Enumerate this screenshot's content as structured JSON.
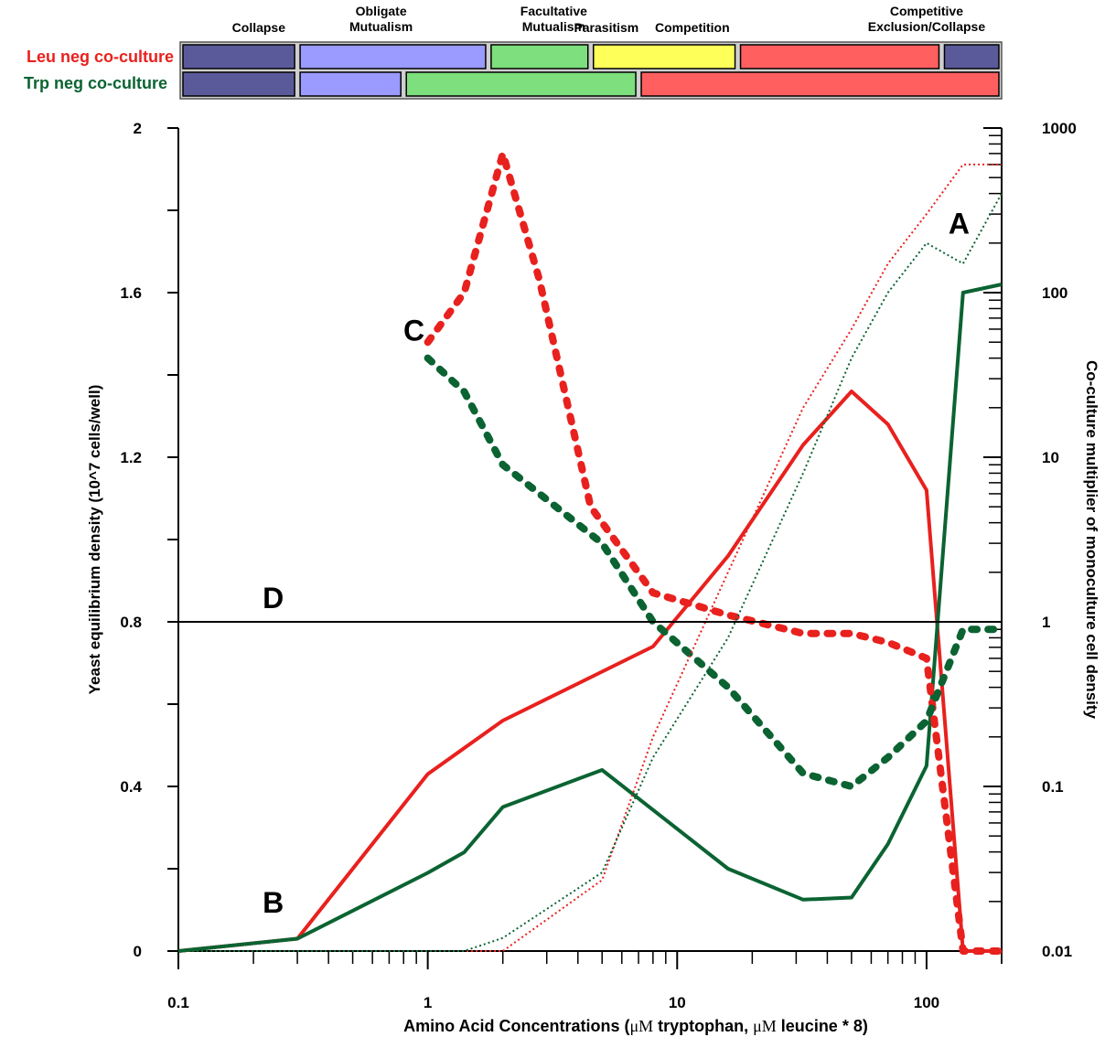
{
  "chart_data": {
    "type": "line",
    "title": "",
    "xlabel": {
      "pre": "Amino Acid Concentrations (",
      "mu1": "μM",
      "mid": " tryptophan, ",
      "mu2": "μM",
      "post": " leucine * 8)"
    },
    "ylabel_left": "Yeast equilibrium density (10^7 cells/well)",
    "ylabel_right": "Co-culture multiplier of monoculture cell density",
    "x_scale": "log",
    "xlim": [
      0.1,
      200
    ],
    "ylim_left": [
      0,
      2
    ],
    "ylim_right": [
      0.01,
      1000
    ],
    "y_right_scale": "log",
    "x_ticks": [
      "0.1",
      "1",
      "10",
      "100"
    ],
    "y_left_ticks": [
      "0",
      "0.4",
      "0.8",
      "1.2",
      "1.6",
      "2"
    ],
    "y_right_ticks": [
      "0.01",
      "0.1",
      "1",
      "10",
      "100",
      "1000"
    ],
    "colors": {
      "leu": "#e8211e",
      "trp": "#0b6332",
      "ref": "#000000"
    },
    "series": [
      {
        "axis": "left",
        "style": "solid",
        "color": "leu",
        "points": [
          [
            0.1,
            0
          ],
          [
            0.3,
            0.03
          ],
          [
            1,
            0.43
          ],
          [
            2,
            0.56
          ],
          [
            8,
            0.74
          ],
          [
            16,
            0.96
          ],
          [
            32,
            1.23
          ],
          [
            50,
            1.36
          ],
          [
            70,
            1.28
          ],
          [
            100,
            1.12
          ],
          [
            140,
            0
          ],
          [
            200,
            0
          ]
        ]
      },
      {
        "axis": "left",
        "style": "solid",
        "color": "trp",
        "points": [
          [
            0.1,
            0
          ],
          [
            0.3,
            0.03
          ],
          [
            1,
            0.19
          ],
          [
            1.4,
            0.24
          ],
          [
            2,
            0.35
          ],
          [
            5,
            0.44
          ],
          [
            16,
            0.2
          ],
          [
            32,
            0.125
          ],
          [
            50,
            0.13
          ],
          [
            70,
            0.26
          ],
          [
            100,
            0.45
          ],
          [
            140,
            1.6
          ],
          [
            200,
            1.62
          ]
        ]
      },
      {
        "axis": "right",
        "style": "dashed",
        "color": "leu",
        "points": [
          [
            1,
            50
          ],
          [
            1.4,
            100
          ],
          [
            2,
            700
          ],
          [
            2.8,
            120
          ],
          [
            4.5,
            5
          ],
          [
            8,
            1.5
          ],
          [
            16,
            1.1
          ],
          [
            32,
            0.85
          ],
          [
            50,
            0.85
          ],
          [
            70,
            0.75
          ],
          [
            100,
            0.6
          ],
          [
            140,
            0.01
          ],
          [
            200,
            0.01
          ]
        ]
      },
      {
        "axis": "right",
        "style": "dashed",
        "color": "trp",
        "points": [
          [
            1,
            40
          ],
          [
            1.4,
            25
          ],
          [
            2,
            9
          ],
          [
            5,
            3
          ],
          [
            8,
            1
          ],
          [
            16,
            0.4
          ],
          [
            32,
            0.12
          ],
          [
            50,
            0.1
          ],
          [
            70,
            0.15
          ],
          [
            100,
            0.25
          ],
          [
            140,
            0.9
          ],
          [
            200,
            0.9
          ]
        ]
      },
      {
        "axis": "right",
        "style": "dotted",
        "color": "leu",
        "points": [
          [
            0.1,
            0.01
          ],
          [
            1,
            0.01
          ],
          [
            2,
            0.01
          ],
          [
            5,
            0.027
          ],
          [
            8,
            0.2
          ],
          [
            16,
            2
          ],
          [
            32,
            20
          ],
          [
            50,
            60
          ],
          [
            70,
            150
          ],
          [
            100,
            300
          ],
          [
            140,
            600
          ],
          [
            200,
            600
          ]
        ]
      },
      {
        "axis": "right",
        "style": "dotted",
        "color": "trp",
        "points": [
          [
            0.1,
            0.01
          ],
          [
            1.4,
            0.01
          ],
          [
            2,
            0.012
          ],
          [
            5,
            0.03
          ],
          [
            8,
            0.15
          ],
          [
            16,
            0.8
          ],
          [
            32,
            8
          ],
          [
            50,
            40
          ],
          [
            70,
            100
          ],
          [
            100,
            200
          ],
          [
            140,
            150
          ],
          [
            200,
            400
          ]
        ]
      },
      {
        "axis": "left",
        "style": "solid",
        "color": "ref",
        "points": [
          [
            0.1,
            0.8
          ],
          [
            200,
            0.8
          ]
        ]
      }
    ],
    "annotations": [
      {
        "text": "A",
        "x": 135,
        "y": 1.77,
        "axis": "left"
      },
      {
        "text": "B",
        "x": 0.24,
        "y": 0.12,
        "axis": "left"
      },
      {
        "text": "C",
        "x": 0.88,
        "y": 1.51,
        "axis": "left"
      },
      {
        "text": "D",
        "x": 0.24,
        "y": 0.86,
        "axis": "left"
      }
    ]
  },
  "legend": {
    "leu_label": "Leu neg co-culture",
    "trp_label": "Trp neg co-culture"
  },
  "interaction_bar": {
    "headers": [
      {
        "lines": [
          "Collapse"
        ],
        "x_center": 0.21
      },
      {
        "lines": [
          "Obligate",
          "Mutualism"
        ],
        "x_center": 0.65
      },
      {
        "lines": [
          "Facultative",
          "Mutualism"
        ],
        "x_center": 3.2
      },
      {
        "lines": [
          "Parasitism"
        ],
        "x_center": 5.2
      },
      {
        "lines": [
          "Competition"
        ],
        "x_center": 11.5
      },
      {
        "lines": [
          "Competitive",
          "Exclusion/Collapse"
        ],
        "x_center": 100
      }
    ],
    "leu_row": [
      {
        "state": "collapse",
        "from": 0.1,
        "to": 0.3
      },
      {
        "state": "obligate",
        "from": 0.3,
        "to": 1.75
      },
      {
        "state": "facultative",
        "from": 1.75,
        "to": 4.5
      },
      {
        "state": "parasitism",
        "from": 4.5,
        "to": 17.5
      },
      {
        "state": "competition",
        "from": 17.5,
        "to": 115
      },
      {
        "state": "exclusion",
        "from": 115,
        "to": 200
      }
    ],
    "trp_row": [
      {
        "state": "collapse",
        "from": 0.1,
        "to": 0.3
      },
      {
        "state": "obligate",
        "from": 0.3,
        "to": 0.8
      },
      {
        "state": "facultative",
        "from": 0.8,
        "to": 7
      },
      {
        "state": "competition",
        "from": 7,
        "to": 200
      }
    ],
    "state_colors": {
      "collapse": "#5a5a9a",
      "obligate": "#9a9aff",
      "facultative": "#7ddf7d",
      "parasitism": "#ffff5a",
      "competition": "#ff5f5f",
      "exclusion": "#5a5a9a"
    }
  }
}
